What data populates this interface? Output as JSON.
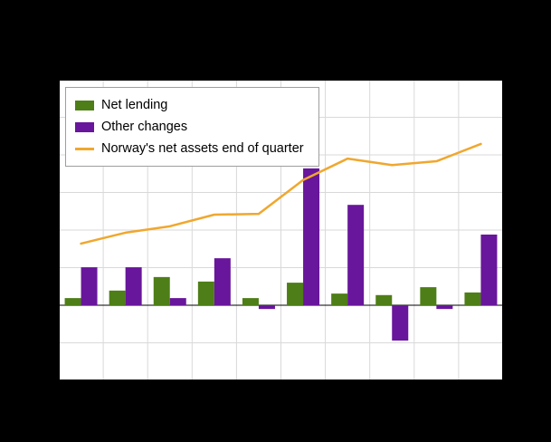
{
  "colors": {
    "page_background": "#000000",
    "plot_background": "#ffffff"
  },
  "chart_data": {
    "type": "combo",
    "x_count": 10,
    "x_tick_labels_visible": false,
    "y_tick_labels_visible": false,
    "units": "unlabeled-gridline-divisions",
    "ylim": [
      -2,
      6
    ],
    "y_gridline_step": 1,
    "grid": true,
    "grid_color": "#d9d9d9",
    "axis_color": "#000000",
    "legend_position": "top-left-inside",
    "series": [
      {
        "name": "Net lending",
        "type": "bar",
        "color": "#4E7E17",
        "values": [
          0.19,
          0.39,
          0.75,
          0.63,
          0.19,
          0.6,
          0.31,
          0.27,
          0.48,
          0.34
        ]
      },
      {
        "name": "Other changes",
        "type": "bar",
        "color": "#68169B",
        "values": [
          1.01,
          1.01,
          0.19,
          1.25,
          -0.1,
          3.64,
          2.67,
          -0.94,
          -0.1,
          1.88
        ]
      },
      {
        "name": "Norway's net assets end of quarter",
        "type": "line",
        "color": "#F0A72E",
        "values": [
          1.64,
          1.93,
          2.1,
          2.41,
          2.43,
          3.33,
          3.9,
          3.73,
          3.83,
          4.29
        ]
      }
    ]
  }
}
